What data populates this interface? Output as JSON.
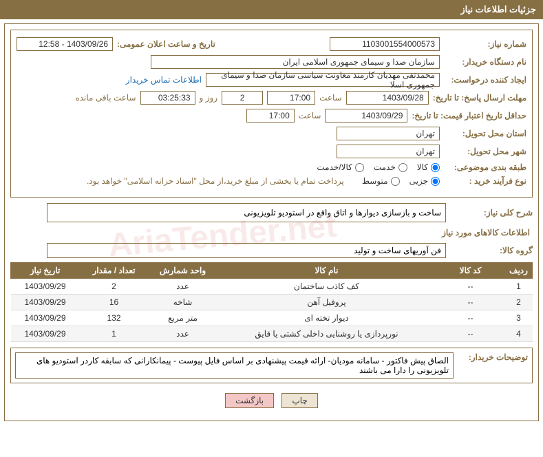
{
  "header": {
    "title": "جزئیات اطلاعات نیاز"
  },
  "fields": {
    "need_number_label": "شماره نیاز:",
    "need_number": "1103001554000573",
    "announce_label": "تاریخ و ساعت اعلان عمومی:",
    "announce_value": "1403/09/26 - 12:58",
    "buyer_label": "نام دستگاه خریدار:",
    "buyer_value": "سازمان صدا و سیمای جمهوری اسلامی ایران",
    "requester_label": "ایجاد کننده درخواست:",
    "requester_value": "محمدتقی مهدیان کارمند معاونت سیاسی سازمان صدا و سیمای جمهوری اسلا",
    "contact_link": "اطلاعات تماس خریدار",
    "deadline_label": "مهلت ارسال پاسخ: تا تاریخ:",
    "deadline_date": "1403/09/28",
    "time_label": "ساعت",
    "deadline_time": "17:00",
    "days_text": "روز و",
    "days_value": "2",
    "countdown": "03:25:33",
    "remaining_text": "ساعت باقی مانده",
    "validity_label": "حداقل تاریخ اعتبار قیمت: تا تاریخ:",
    "validity_date": "1403/09/29",
    "validity_time": "17:00",
    "province_label": "استان محل تحویل:",
    "province_value": "تهران",
    "city_label": "شهر محل تحویل:",
    "city_value": "تهران",
    "category_label": "طبقه بندی موضوعی:",
    "cat_goods": "کالا",
    "cat_service": "خدمت",
    "cat_both": "کالا/خدمت",
    "process_label": "نوع فرآیند خرید :",
    "proc_small": "جزیی",
    "proc_medium": "متوسط",
    "payment_note": "پرداخت تمام یا بخشی از مبلغ خرید،از محل \"اسناد خزانه اسلامی\" خواهد بود.",
    "general_desc_label": "شرح کلی نیاز:",
    "general_desc_value": "ساخت و بازسازی دیوارها و اتاق واقع در استودیو تلویزیونی",
    "goods_section": "اطلاعات کالاهای مورد نیاز",
    "group_label": "گروه کالا:",
    "group_value": "فن آوریهای ساخت و تولید",
    "buyer_note_label": "توضیحات خریدار:",
    "buyer_note_value": "الصاق پیش فاکتور - سامانه مودیان- ارائه قیمت پیشنهادی بر اساس فایل پیوست - پیمانکارانی که سابقه کاردر استودیو های تلویزیونی را دارا می باشند"
  },
  "table": {
    "headers": {
      "row": "ردیف",
      "code": "کد کالا",
      "name": "نام کالا",
      "unit": "واحد شمارش",
      "qty": "تعداد / مقدار",
      "date": "تاریخ نیاز"
    },
    "rows": [
      {
        "n": "1",
        "code": "--",
        "name": "کف کاذب ساختمان",
        "unit": "عدد",
        "qty": "2",
        "date": "1403/09/29"
      },
      {
        "n": "2",
        "code": "--",
        "name": "پروفیل آهن",
        "unit": "شاخه",
        "qty": "16",
        "date": "1403/09/29"
      },
      {
        "n": "3",
        "code": "--",
        "name": "دیوار تخته ای",
        "unit": "متر مربع",
        "qty": "132",
        "date": "1403/09/29"
      },
      {
        "n": "4",
        "code": "--",
        "name": "نورپردازی یا روشنایی داخلی کشتی یا قایق",
        "unit": "عدد",
        "qty": "1",
        "date": "1403/09/29"
      }
    ]
  },
  "buttons": {
    "print": "چاپ",
    "back": "بازگشت"
  },
  "colors": {
    "brand": "#876f44",
    "link": "#1a6db1",
    "btn_back_bg": "#f4c7c7",
    "btn_print_bg": "#ede4d4"
  }
}
